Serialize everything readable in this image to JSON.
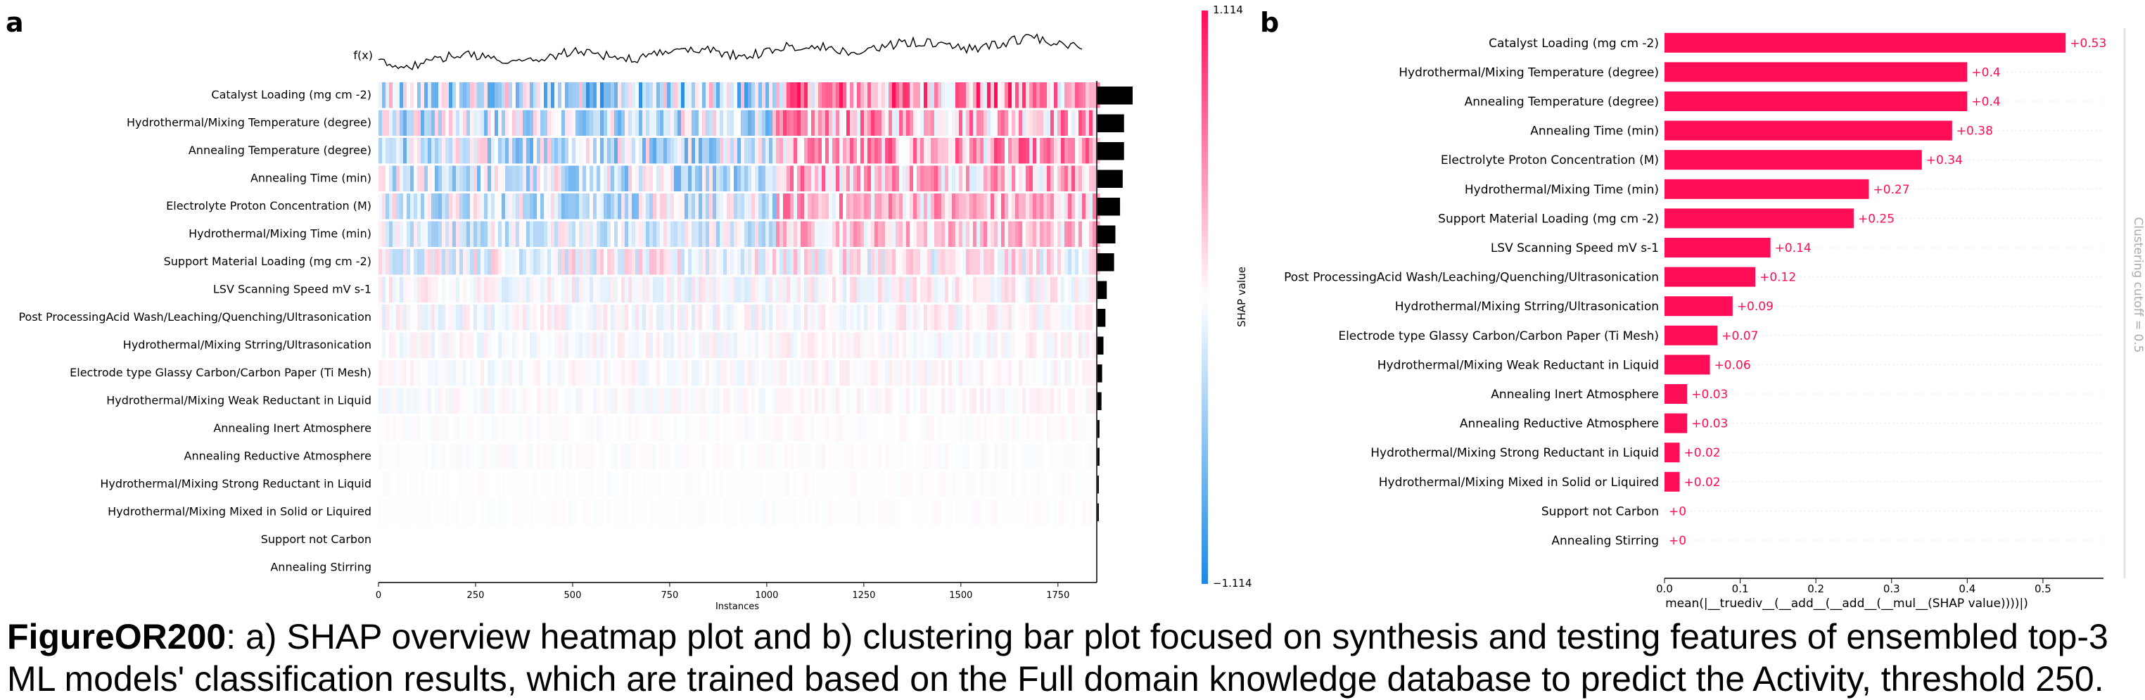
{
  "panel_a_label": "a",
  "panel_b_label": "b",
  "caption": {
    "figure_id": "FigureOR200",
    "text": ": a) SHAP overview heatmap plot and b) clustering bar plot focused on synthesis and testing features of ensembled top-3 ML models' classification results, which are trained based on the Full domain knowledge database to predict the Activity, threshold 250."
  },
  "colors": {
    "positive": "#ff0d57",
    "negative": "#1e88e5",
    "neutral": "#ffffff",
    "importance_bar": "#000000",
    "fx_line": "#000000"
  },
  "chart_data": [
    {
      "type": "heatmap",
      "fx_label": "f(x)",
      "xlabel": "Instances",
      "x_ticks": [
        0,
        250,
        500,
        750,
        1000,
        1250,
        1500,
        1750
      ],
      "xlim": [
        0,
        1850
      ],
      "colorbar": {
        "label": "SHAP value",
        "max": "1.114",
        "min": "−1.114"
      },
      "features": [
        "Catalyst Loading (mg cm -2)",
        "Hydrothermal/Mixing Temperature (degree)",
        "Annealing Temperature (degree)",
        "Annealing Time (min)",
        "Electrolyte Proton Concentration (M)",
        "Hydrothermal/Mixing Time (min)",
        "Support Material Loading (mg cm -2)",
        "LSV Scanning Speed mV s-1",
        "Post ProcessingAcid Wash/Leaching/Quenching/Ultrasonication",
        "Hydrothermal/Mixing Strring/Ultrasonication",
        "Electrode type Glassy Carbon/Carbon Paper (Ti Mesh)",
        "Hydrothermal/Mixing Weak Reductant in Liquid",
        "Annealing Inert Atmosphere",
        "Annealing Reductive Atmosphere",
        "Hydrothermal/Mixing Strong Reductant in Liquid",
        "Hydrothermal/Mixing Mixed in Solid or Liquired",
        "Support not Carbon",
        "Annealing Stirring"
      ],
      "importance": [
        0.53,
        0.4,
        0.4,
        0.38,
        0.34,
        0.27,
        0.25,
        0.14,
        0.12,
        0.09,
        0.07,
        0.06,
        0.03,
        0.03,
        0.02,
        0.02,
        0.0,
        0.0
      ]
    },
    {
      "type": "bar",
      "orientation": "horizontal",
      "categories": [
        "Catalyst Loading (mg cm -2)",
        "Hydrothermal/Mixing Temperature (degree)",
        "Annealing Temperature (degree)",
        "Annealing Time (min)",
        "Electrolyte Proton Concentration (M)",
        "Hydrothermal/Mixing Time (min)",
        "Support Material Loading (mg cm -2)",
        "LSV Scanning Speed mV s-1",
        "Post ProcessingAcid Wash/Leaching/Quenching/Ultrasonication",
        "Hydrothermal/Mixing Strring/Ultrasonication",
        "Electrode type Glassy Carbon/Carbon Paper (Ti Mesh)",
        "Hydrothermal/Mixing Weak Reductant in Liquid",
        "Annealing Inert Atmosphere",
        "Annealing Reductive Atmosphere",
        "Hydrothermal/Mixing Strong Reductant in Liquid",
        "Hydrothermal/Mixing Mixed in Solid or Liquired",
        "Support not Carbon",
        "Annealing Stirring"
      ],
      "values": [
        0.53,
        0.4,
        0.4,
        0.38,
        0.34,
        0.27,
        0.25,
        0.14,
        0.12,
        0.09,
        0.07,
        0.06,
        0.03,
        0.03,
        0.02,
        0.02,
        0.0,
        0.0
      ],
      "value_labels": [
        "+0.53",
        "+0.4",
        "+0.4",
        "+0.38",
        "+0.34",
        "+0.27",
        "+0.25",
        "+0.14",
        "+0.12",
        "+0.09",
        "+0.07",
        "+0.06",
        "+0.03",
        "+0.03",
        "+0.02",
        "+0.02",
        "+0",
        "+0"
      ],
      "xlabel": "mean(|__truediv__(__add__(__add__(__mul__(SHAP value))))|)",
      "x_ticks": [
        "0.0",
        "0.1",
        "0.2",
        "0.3",
        "0.4",
        "0.5"
      ],
      "xlim": [
        0,
        0.58
      ],
      "cutoff_label": "Clustering cutoff = 0.5"
    }
  ]
}
